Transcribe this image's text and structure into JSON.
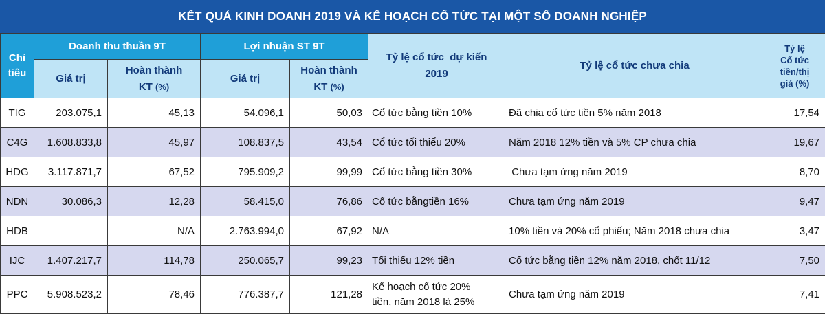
{
  "title": "KẾT QUẢ KINH DOANH 2019 VÀ KẾ HOẠCH CỔ TỨC TẠI MỘT SỐ DOANH NGHIỆP",
  "headers": {
    "chi_tieu": [
      "Chỉ",
      "tiêu"
    ],
    "doanh_thu": "Doanh thu thuần 9T",
    "loi_nhuan": "Lợi nhuận ST 9T",
    "gia_tri": "Giá trị",
    "hoan_thanh": "Hoàn thành",
    "kt": "KT",
    "pct": "(%)",
    "ty_le_du_kien": [
      "Tỷ lệ cổ tức  dự kiến",
      "2019"
    ],
    "ty_le_chua_chia": "Tỷ lệ cổ tức chưa chia",
    "ty_le_thi_gia": [
      "Tỷ lệ",
      "Cổ tức",
      "tiền/thị",
      "giá (%)"
    ]
  },
  "rows": [
    {
      "code": "TIG",
      "dt_value": "203.075,1",
      "dt_pct": "45,13",
      "ln_value": "54.096,1",
      "ln_pct": "50,03",
      "plan": "Cổ tức bằng tiền 10%",
      "unpaid": "Đã chia cổ tức tiền 5% năm 2018",
      "yield": "17,54"
    },
    {
      "code": "C4G",
      "dt_value": "1.608.833,8",
      "dt_pct": "45,97",
      "ln_value": "108.837,5",
      "ln_pct": "43,54",
      "plan": "Cổ tức tối thiểu 20%",
      "unpaid": "Năm 2018 12% tiền và 5% CP chưa chia",
      "yield": "19,67"
    },
    {
      "code": "HDG",
      "dt_value": "3.117.871,7",
      "dt_pct": "67,52",
      "ln_value": "795.909,2",
      "ln_pct": "99,99",
      "plan": "Cổ tức bằng tiền 30%",
      "unpaid": " Chưa tạm ứng năm 2019",
      "yield": "8,70"
    },
    {
      "code": "NDN",
      "dt_value": "30.086,3",
      "dt_pct": "12,28",
      "ln_value": "58.415,0",
      "ln_pct": "76,86",
      "plan": "Cổ tức bằngtiền 16%",
      "unpaid": "Chưa tạm ứng năm 2019",
      "yield": "9,47"
    },
    {
      "code": "HDB",
      "dt_value": "",
      "dt_pct": "N/A",
      "ln_value": "2.763.994,0",
      "ln_pct": "67,92",
      "plan": "N/A",
      "unpaid": "10% tiền và 20% cổ phiếu; Năm 2018 chưa chia",
      "yield": "3,47"
    },
    {
      "code": "IJC",
      "dt_value": "1.407.217,7",
      "dt_pct": "114,78",
      "ln_value": "250.065,7",
      "ln_pct": "99,23",
      "plan": "Tối thiểu 12% tiền",
      "unpaid": "Cổ tức bằng tiền 12% năm 2018, chốt 11/12",
      "yield": "7,50"
    },
    {
      "code": "PPC",
      "dt_value": "5.908.523,2",
      "dt_pct": "78,46",
      "ln_value": "776.387,7",
      "ln_pct": "121,28",
      "plan": [
        "Kế hoạch cổ tức 20%",
        "tiền, năm 2018 là 25%"
      ],
      "unpaid": "Chưa tạm ứng năm 2019",
      "yield": "7,41"
    }
  ]
}
